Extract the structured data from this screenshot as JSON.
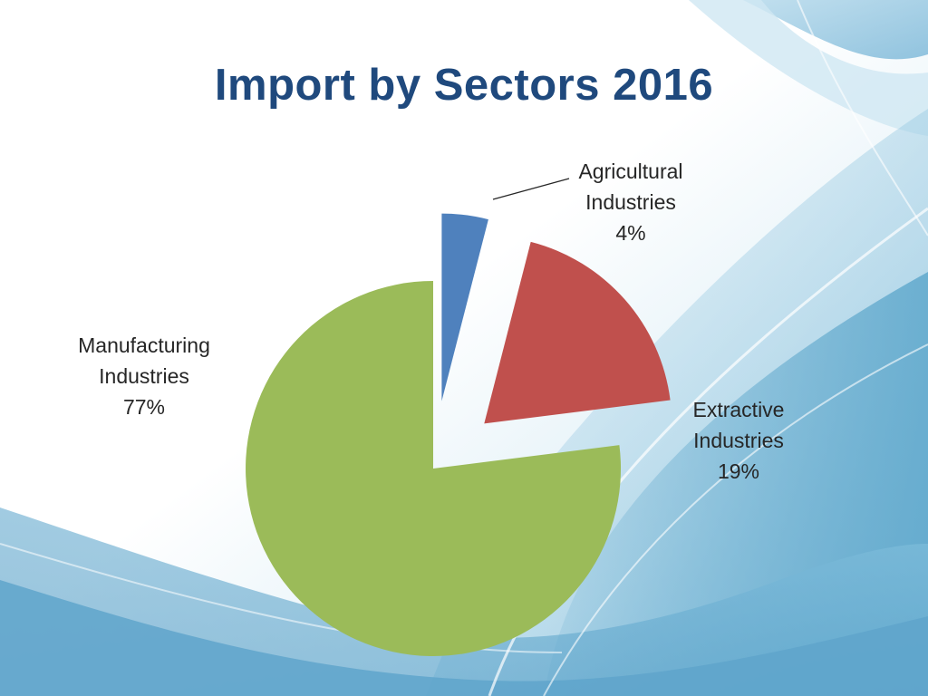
{
  "title": "Import by Sectors 2016",
  "colors": {
    "title": "#1F497D",
    "agricultural": "#4F81BD",
    "extractive": "#C0504D",
    "manufacturing": "#9BBB59",
    "label_text": "#262626",
    "background_light": "#FFFFFF",
    "background_blue": "#6FB3D3"
  },
  "chart_data": {
    "type": "pie",
    "title": "Import by Sectors 2016",
    "legend": "none",
    "slices": [
      {
        "label_line1": "Agricultural",
        "label_line2": "Industries",
        "percent_text": "4%",
        "value": 4,
        "color": "#4F81BD",
        "exploded": true
      },
      {
        "label_line1": "Extractive",
        "label_line2": "Industries",
        "percent_text": "19%",
        "value": 19,
        "color": "#C0504D",
        "exploded": true
      },
      {
        "label_line1": "Manufacturing",
        "label_line2": "Industries",
        "percent_text": "77%",
        "value": 77,
        "color": "#9BBB59",
        "exploded": false
      }
    ]
  }
}
